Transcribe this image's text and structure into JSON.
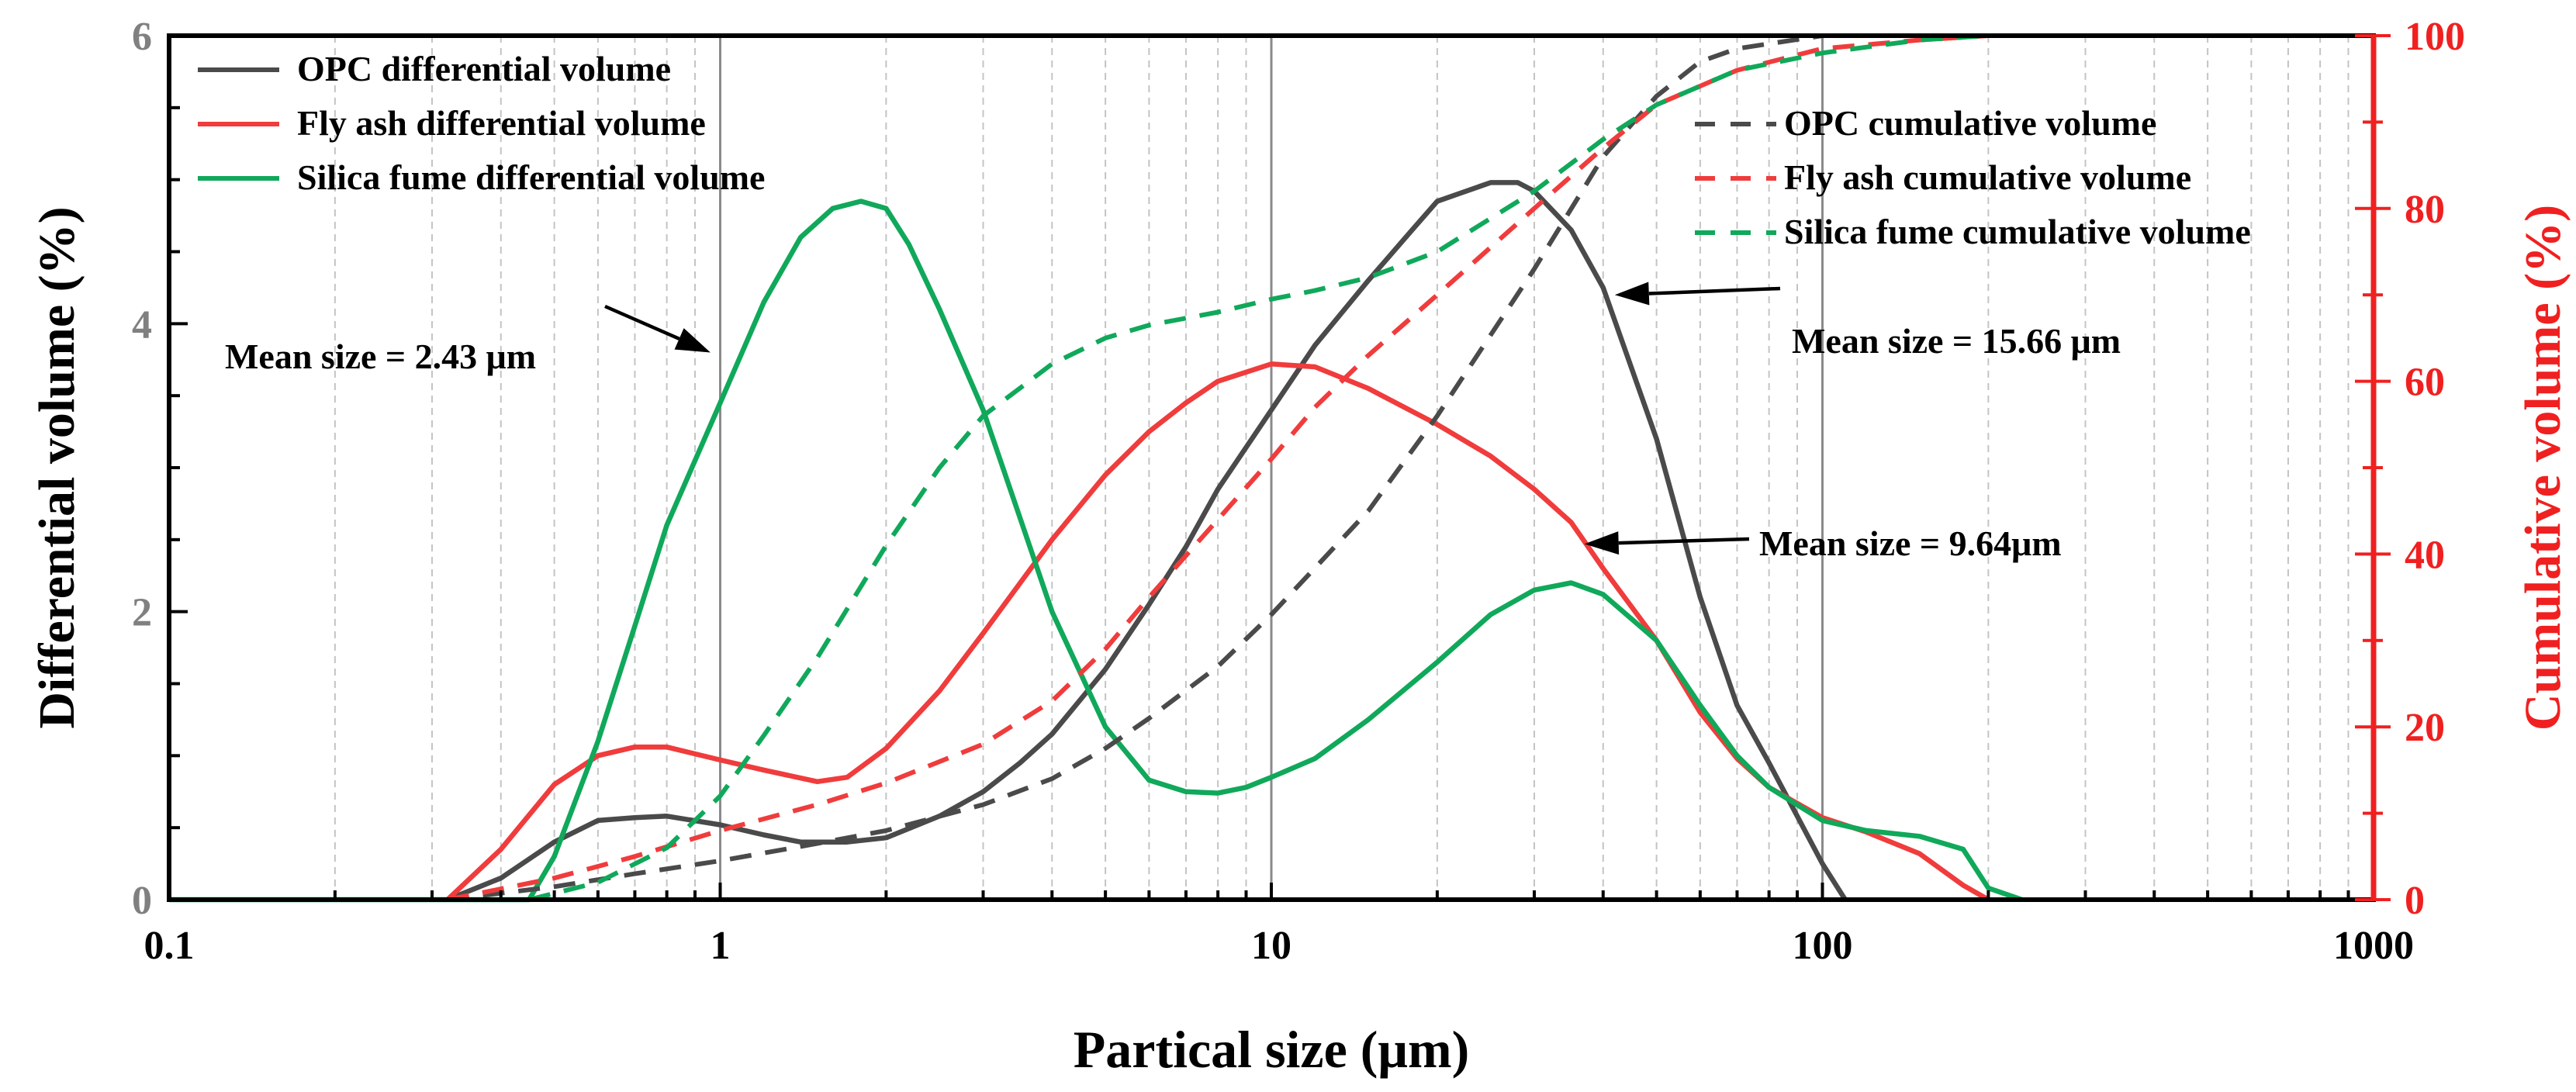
{
  "chart_data": {
    "type": "line",
    "xscale": "log",
    "xlim": [
      0.1,
      1000
    ],
    "xlabel": "Partical size (μm)",
    "ylabel_left": "Differential volume (%)",
    "ylabel_right": "Cumulative volume (%)",
    "ylim_left": [
      0,
      6
    ],
    "ylim_right": [
      0,
      100
    ],
    "x_ticks": [
      0.1,
      1,
      10,
      100,
      1000
    ],
    "x_tick_labels": [
      "0.1",
      "1",
      "10",
      "100",
      "1000"
    ],
    "y_left_ticks": [
      0,
      2,
      4,
      6
    ],
    "y_left_tick_labels": [
      "0",
      "2",
      "4",
      "6"
    ],
    "y_right_ticks": [
      0,
      20,
      40,
      60,
      80,
      100
    ],
    "y_right_tick_labels": [
      "0",
      "20",
      "40",
      "60",
      "80",
      "100"
    ],
    "colors": {
      "opc": "#4a4a4a",
      "fly_ash": "#f03c3c",
      "silica_fume": "#10a85a",
      "right_axis": "#f02020"
    },
    "series": [
      {
        "name": "OPC differential volume",
        "axis": "left",
        "color": "#4a4a4a",
        "dash": false,
        "x": [
          0.32,
          0.4,
          0.5,
          0.6,
          0.7,
          0.8,
          1,
          1.2,
          1.4,
          1.7,
          2,
          2.5,
          3,
          3.5,
          4,
          5,
          6,
          7,
          8,
          10,
          12,
          15,
          18,
          20,
          25,
          28,
          30,
          35,
          40,
          50,
          60,
          70,
          80,
          100,
          110
        ],
        "y": [
          0,
          0.15,
          0.4,
          0.55,
          0.57,
          0.58,
          0.52,
          0.45,
          0.4,
          0.4,
          0.43,
          0.58,
          0.75,
          0.95,
          1.15,
          1.6,
          2.05,
          2.45,
          2.85,
          3.4,
          3.85,
          4.3,
          4.65,
          4.85,
          4.98,
          4.98,
          4.92,
          4.65,
          4.25,
          3.2,
          2.1,
          1.35,
          0.95,
          0.25,
          0
        ]
      },
      {
        "name": "Fly ash differential volume",
        "axis": "left",
        "color": "#f03c3c",
        "dash": false,
        "x": [
          0.32,
          0.4,
          0.5,
          0.6,
          0.7,
          0.8,
          1,
          1.2,
          1.5,
          1.7,
          2,
          2.5,
          3,
          4,
          5,
          6,
          7,
          8,
          10,
          12,
          15,
          20,
          25,
          30,
          35,
          40,
          50,
          60,
          70,
          80,
          100,
          120,
          150,
          180,
          200
        ],
        "y": [
          0,
          0.35,
          0.8,
          1.0,
          1.06,
          1.06,
          0.97,
          0.9,
          0.82,
          0.85,
          1.05,
          1.45,
          1.85,
          2.5,
          2.95,
          3.25,
          3.45,
          3.6,
          3.72,
          3.7,
          3.55,
          3.3,
          3.08,
          2.85,
          2.62,
          2.3,
          1.8,
          1.3,
          0.98,
          0.78,
          0.57,
          0.47,
          0.32,
          0.1,
          0
        ]
      },
      {
        "name": "Silica fume differential volume",
        "axis": "left",
        "color": "#10a85a",
        "dash": false,
        "x": [
          0.1,
          0.45,
          0.5,
          0.6,
          0.7,
          0.8,
          1,
          1.2,
          1.4,
          1.6,
          1.8,
          2,
          2.2,
          2.5,
          3,
          3.5,
          4,
          5,
          6,
          7,
          8,
          9,
          10,
          12,
          15,
          20,
          25,
          30,
          35,
          40,
          50,
          60,
          70,
          80,
          100,
          120,
          150,
          180,
          200,
          230
        ],
        "y": [
          0,
          0,
          0.3,
          1.1,
          1.9,
          2.6,
          3.45,
          4.15,
          4.6,
          4.8,
          4.85,
          4.8,
          4.55,
          4.1,
          3.4,
          2.65,
          2.0,
          1.2,
          0.83,
          0.75,
          0.74,
          0.78,
          0.85,
          0.98,
          1.25,
          1.65,
          1.98,
          2.15,
          2.2,
          2.12,
          1.8,
          1.35,
          1.0,
          0.78,
          0.55,
          0.48,
          0.44,
          0.35,
          0.08,
          0
        ]
      },
      {
        "name": "OPC cumulative volume",
        "axis": "right",
        "color": "#4a4a4a",
        "dash": true,
        "x": [
          0.32,
          0.5,
          0.7,
          1,
          1.5,
          2,
          3,
          4,
          5,
          6,
          8,
          10,
          15,
          20,
          30,
          40,
          50,
          60,
          70,
          100
        ],
        "y": [
          0,
          1.5,
          3,
          4.5,
          6.5,
          8,
          11,
          14,
          17.5,
          21,
          27,
          33,
          45,
          56,
          73,
          86,
          93,
          97,
          98.5,
          100
        ]
      },
      {
        "name": "Fly ash cumulative volume",
        "axis": "right",
        "color": "#f03c3c",
        "dash": true,
        "x": [
          0.32,
          0.5,
          0.7,
          1,
          1.5,
          2,
          3,
          4,
          5,
          6,
          8,
          10,
          12,
          15,
          20,
          30,
          40,
          50,
          70,
          100,
          150,
          200
        ],
        "y": [
          0,
          2.5,
          5,
          8,
          11,
          13.5,
          18,
          23,
          29,
          35,
          44,
          51,
          57,
          63,
          70,
          80,
          87,
          92,
          96,
          98.5,
          99.5,
          100
        ]
      },
      {
        "name": "Silica fume cumulative volume",
        "axis": "right",
        "color": "#10a85a",
        "dash": true,
        "x": [
          0.45,
          0.6,
          0.8,
          1,
          1.2,
          1.5,
          2,
          2.5,
          3,
          4,
          5,
          6,
          8,
          10,
          12,
          15,
          20,
          30,
          40,
          50,
          70,
          100,
          150,
          200
        ],
        "y": [
          0,
          2,
          6,
          12,
          19,
          28,
          41,
          50,
          56,
          62,
          65,
          66.5,
          68,
          69.5,
          70.5,
          72,
          75,
          82,
          88,
          92,
          96,
          98,
          99.5,
          100
        ]
      }
    ],
    "annotations": [
      {
        "text": "Mean size = 2.43 μm",
        "arrow_to": {
          "x": 0.96,
          "y": 3.8,
          "axis": "left"
        }
      },
      {
        "text": "Mean size = 15.66 μm",
        "arrow_to": {
          "x": 42,
          "y": 4.2,
          "axis": "left"
        }
      },
      {
        "text": "Mean size = 9.64μm",
        "arrow_to": {
          "x": 37,
          "y": 2.47,
          "axis": "left"
        }
      }
    ],
    "legend_left": [
      "OPC differential volume",
      "Fly ash differential volume",
      "Silica fume differential volume"
    ],
    "legend_right": [
      "OPC cumulative volume",
      "Fly ash cumulative volume",
      "Silica fume cumulative volume"
    ]
  }
}
